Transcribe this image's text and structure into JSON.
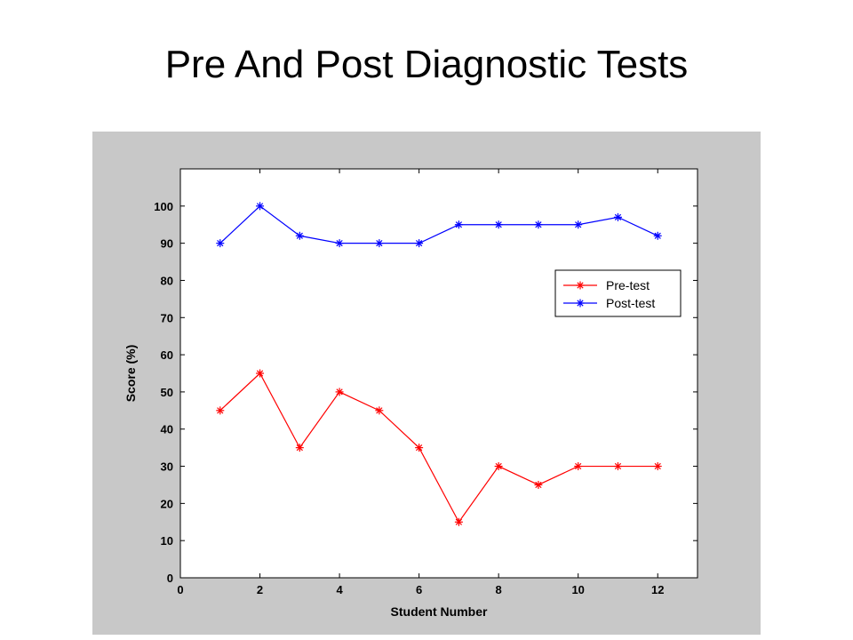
{
  "slide": {
    "title": "Pre And Post Diagnostic Tests"
  },
  "chart_data": {
    "type": "line",
    "title": "",
    "xlabel": "Student Number",
    "ylabel": "Score (%)",
    "xlim": [
      0,
      13
    ],
    "ylim": [
      0,
      110
    ],
    "xticks": [
      0,
      2,
      4,
      6,
      8,
      10,
      12
    ],
    "yticks": [
      0,
      10,
      20,
      30,
      40,
      50,
      60,
      70,
      80,
      90,
      100
    ],
    "grid": false,
    "legend_position": "top-right",
    "marker": "asterisk",
    "x": [
      1,
      2,
      3,
      4,
      5,
      6,
      7,
      8,
      9,
      10,
      11,
      12
    ],
    "series": [
      {
        "name": "Pre-test",
        "color": "#ff0000",
        "values": [
          45,
          55,
          35,
          50,
          45,
          35,
          15,
          30,
          25,
          30,
          30,
          30
        ]
      },
      {
        "name": "Post-test",
        "color": "#0000ff",
        "values": [
          90,
          100,
          92,
          90,
          90,
          90,
          95,
          95,
          95,
          95,
          97,
          92
        ]
      }
    ]
  }
}
